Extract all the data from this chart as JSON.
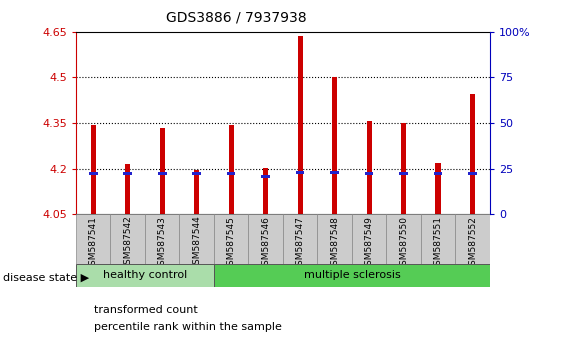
{
  "title": "GDS3886 / 7937938",
  "samples": [
    "GSM587541",
    "GSM587542",
    "GSM587543",
    "GSM587544",
    "GSM587545",
    "GSM587546",
    "GSM587547",
    "GSM587548",
    "GSM587549",
    "GSM587550",
    "GSM587551",
    "GSM587552"
  ],
  "red_values": [
    4.345,
    4.215,
    4.335,
    4.195,
    4.345,
    4.202,
    4.638,
    4.502,
    4.355,
    4.35,
    4.22,
    4.445
  ],
  "blue_values": [
    4.183,
    4.183,
    4.185,
    4.183,
    4.183,
    4.173,
    4.187,
    4.187,
    4.185,
    4.183,
    4.183,
    4.185
  ],
  "ymin": 4.05,
  "ymax": 4.65,
  "yticks": [
    4.05,
    4.2,
    4.35,
    4.5,
    4.65
  ],
  "ytick_labels": [
    "4.05",
    "4.2",
    "4.35",
    "4.5",
    "4.65"
  ],
  "y2ticks_pct": [
    0,
    25,
    50,
    75,
    100
  ],
  "y2tick_labels": [
    "0",
    "25",
    "50",
    "75",
    "100%"
  ],
  "bar_color": "#cc0000",
  "blue_color": "#2222cc",
  "healthy_color": "#aaddaa",
  "ms_color": "#55cc55",
  "label_bg_color": "#cccccc",
  "healthy_label": "healthy control",
  "ms_label": "multiple sclerosis",
  "disease_label": "disease state",
  "legend_red": "transformed count",
  "legend_blue": "percentile rank within the sample",
  "healthy_count": 4,
  "ms_count": 8,
  "axis_color_left": "#cc0000",
  "axis_color_right": "#0000bb",
  "bar_width": 0.15,
  "blue_bar_width": 0.25,
  "blue_bar_height": 0.009
}
